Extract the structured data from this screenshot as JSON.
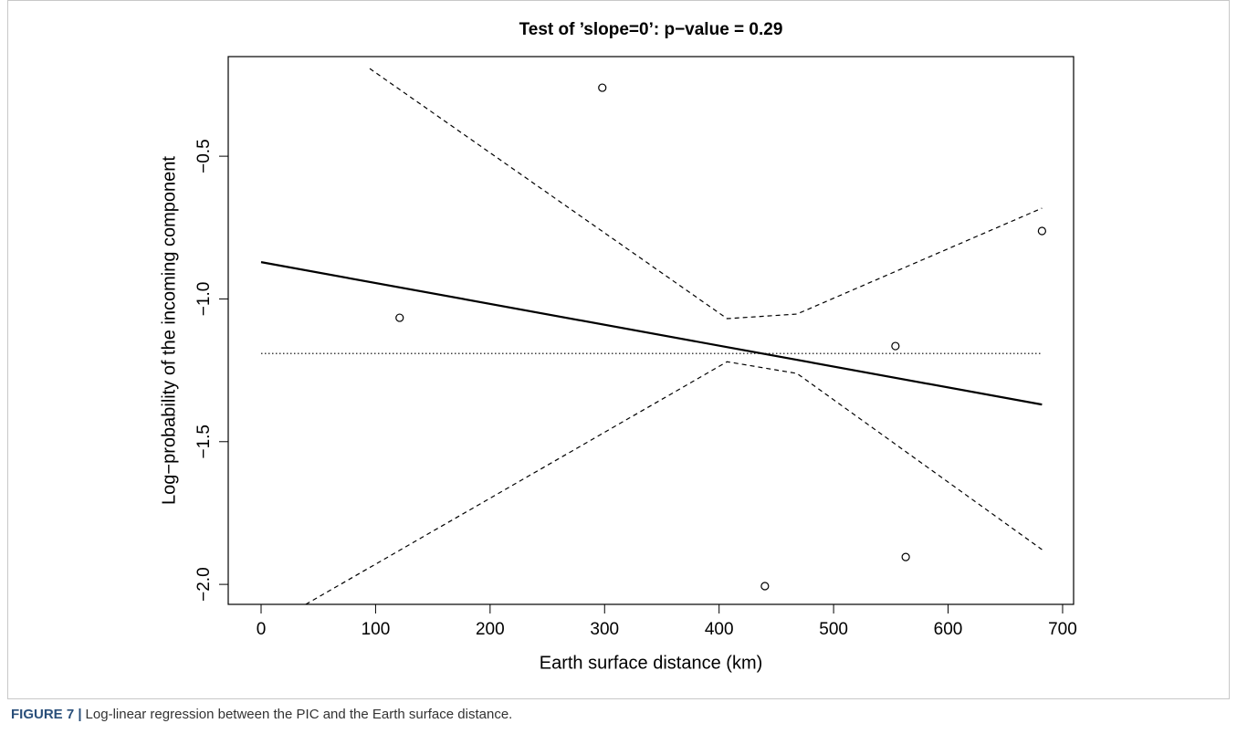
{
  "chart_data": {
    "type": "scatter",
    "title": "Test of ’slope=0’: p−value = 0.29",
    "xlabel": "Earth surface distance (km)",
    "ylabel": "Log−probability of the incoming component",
    "caption_label": "FIGURE 7 |",
    "caption_text": "Log-linear regression between the PIC and the Earth surface distance.",
    "xlim": [
      -28.7,
      709.6
    ],
    "ylim": [
      -2.07,
      -0.151
    ],
    "xticks": [
      0,
      100,
      200,
      300,
      400,
      500,
      600,
      700
    ],
    "yticks": [
      {
        "value": -0.5,
        "label": "−0.5"
      },
      {
        "value": -1.0,
        "label": "−1.0"
      },
      {
        "value": -1.5,
        "label": "−1.5"
      },
      {
        "value": -2.0,
        "label": "−2.0"
      }
    ],
    "series": [
      {
        "style": "points",
        "color": "#000000",
        "x": [
          121,
          298,
          440,
          554,
          563,
          682
        ],
        "values": [
          -1.066,
          -0.26,
          -2.006,
          -1.165,
          -1.904,
          -0.762
        ]
      },
      {
        "style": "solid",
        "color": "#000000",
        "x": [
          0,
          682
        ],
        "values": [
          -0.871,
          -1.37
        ]
      },
      {
        "style": "dotted",
        "color": "#000000",
        "x": [
          0,
          682
        ],
        "values": [
          -1.191,
          -1.191
        ]
      },
      {
        "style": "dashed",
        "color": "#000000",
        "x": [
          94.9,
          407,
          468,
          682
        ],
        "values": [
          -0.193,
          -1.069,
          -1.053,
          -0.682
        ]
      },
      {
        "style": "dashed",
        "color": "#000000",
        "x": [
          39,
          407,
          468,
          682
        ],
        "values": [
          -2.07,
          -1.22,
          -1.261,
          -1.878
        ]
      }
    ]
  }
}
